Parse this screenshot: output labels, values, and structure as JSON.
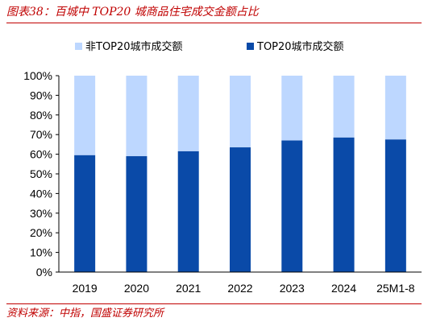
{
  "figure_title": "图表38：百城中 TOP20 城商品住宅成交金额占比",
  "source_note": "资料来源：中指，国盛证券研究所",
  "colors": {
    "top20": "#0a4aa8",
    "non_top20": "#bdd7ff",
    "accent": "#c00000"
  },
  "chart_data": {
    "type": "bar",
    "stacked": true,
    "percent": true,
    "categories": [
      "2019",
      "2020",
      "2021",
      "2022",
      "2023",
      "2024",
      "25M1-8"
    ],
    "series": [
      {
        "name": "TOP20城市成交额",
        "values": [
          59.5,
          59,
          61.5,
          63.5,
          67,
          68.5,
          67.5
        ]
      },
      {
        "name": "非TOP20城市成交额",
        "values": [
          40.5,
          41,
          38.5,
          36.5,
          33,
          31.5,
          32.5
        ]
      }
    ],
    "ylim": [
      0,
      100
    ],
    "yticks": [
      "0%",
      "10%",
      "20%",
      "30%",
      "40%",
      "50%",
      "60%",
      "70%",
      "80%",
      "90%",
      "100%"
    ],
    "legend": [
      "非TOP20城市成交额",
      "TOP20城市成交额"
    ],
    "legend_position": "top",
    "grid": false
  }
}
